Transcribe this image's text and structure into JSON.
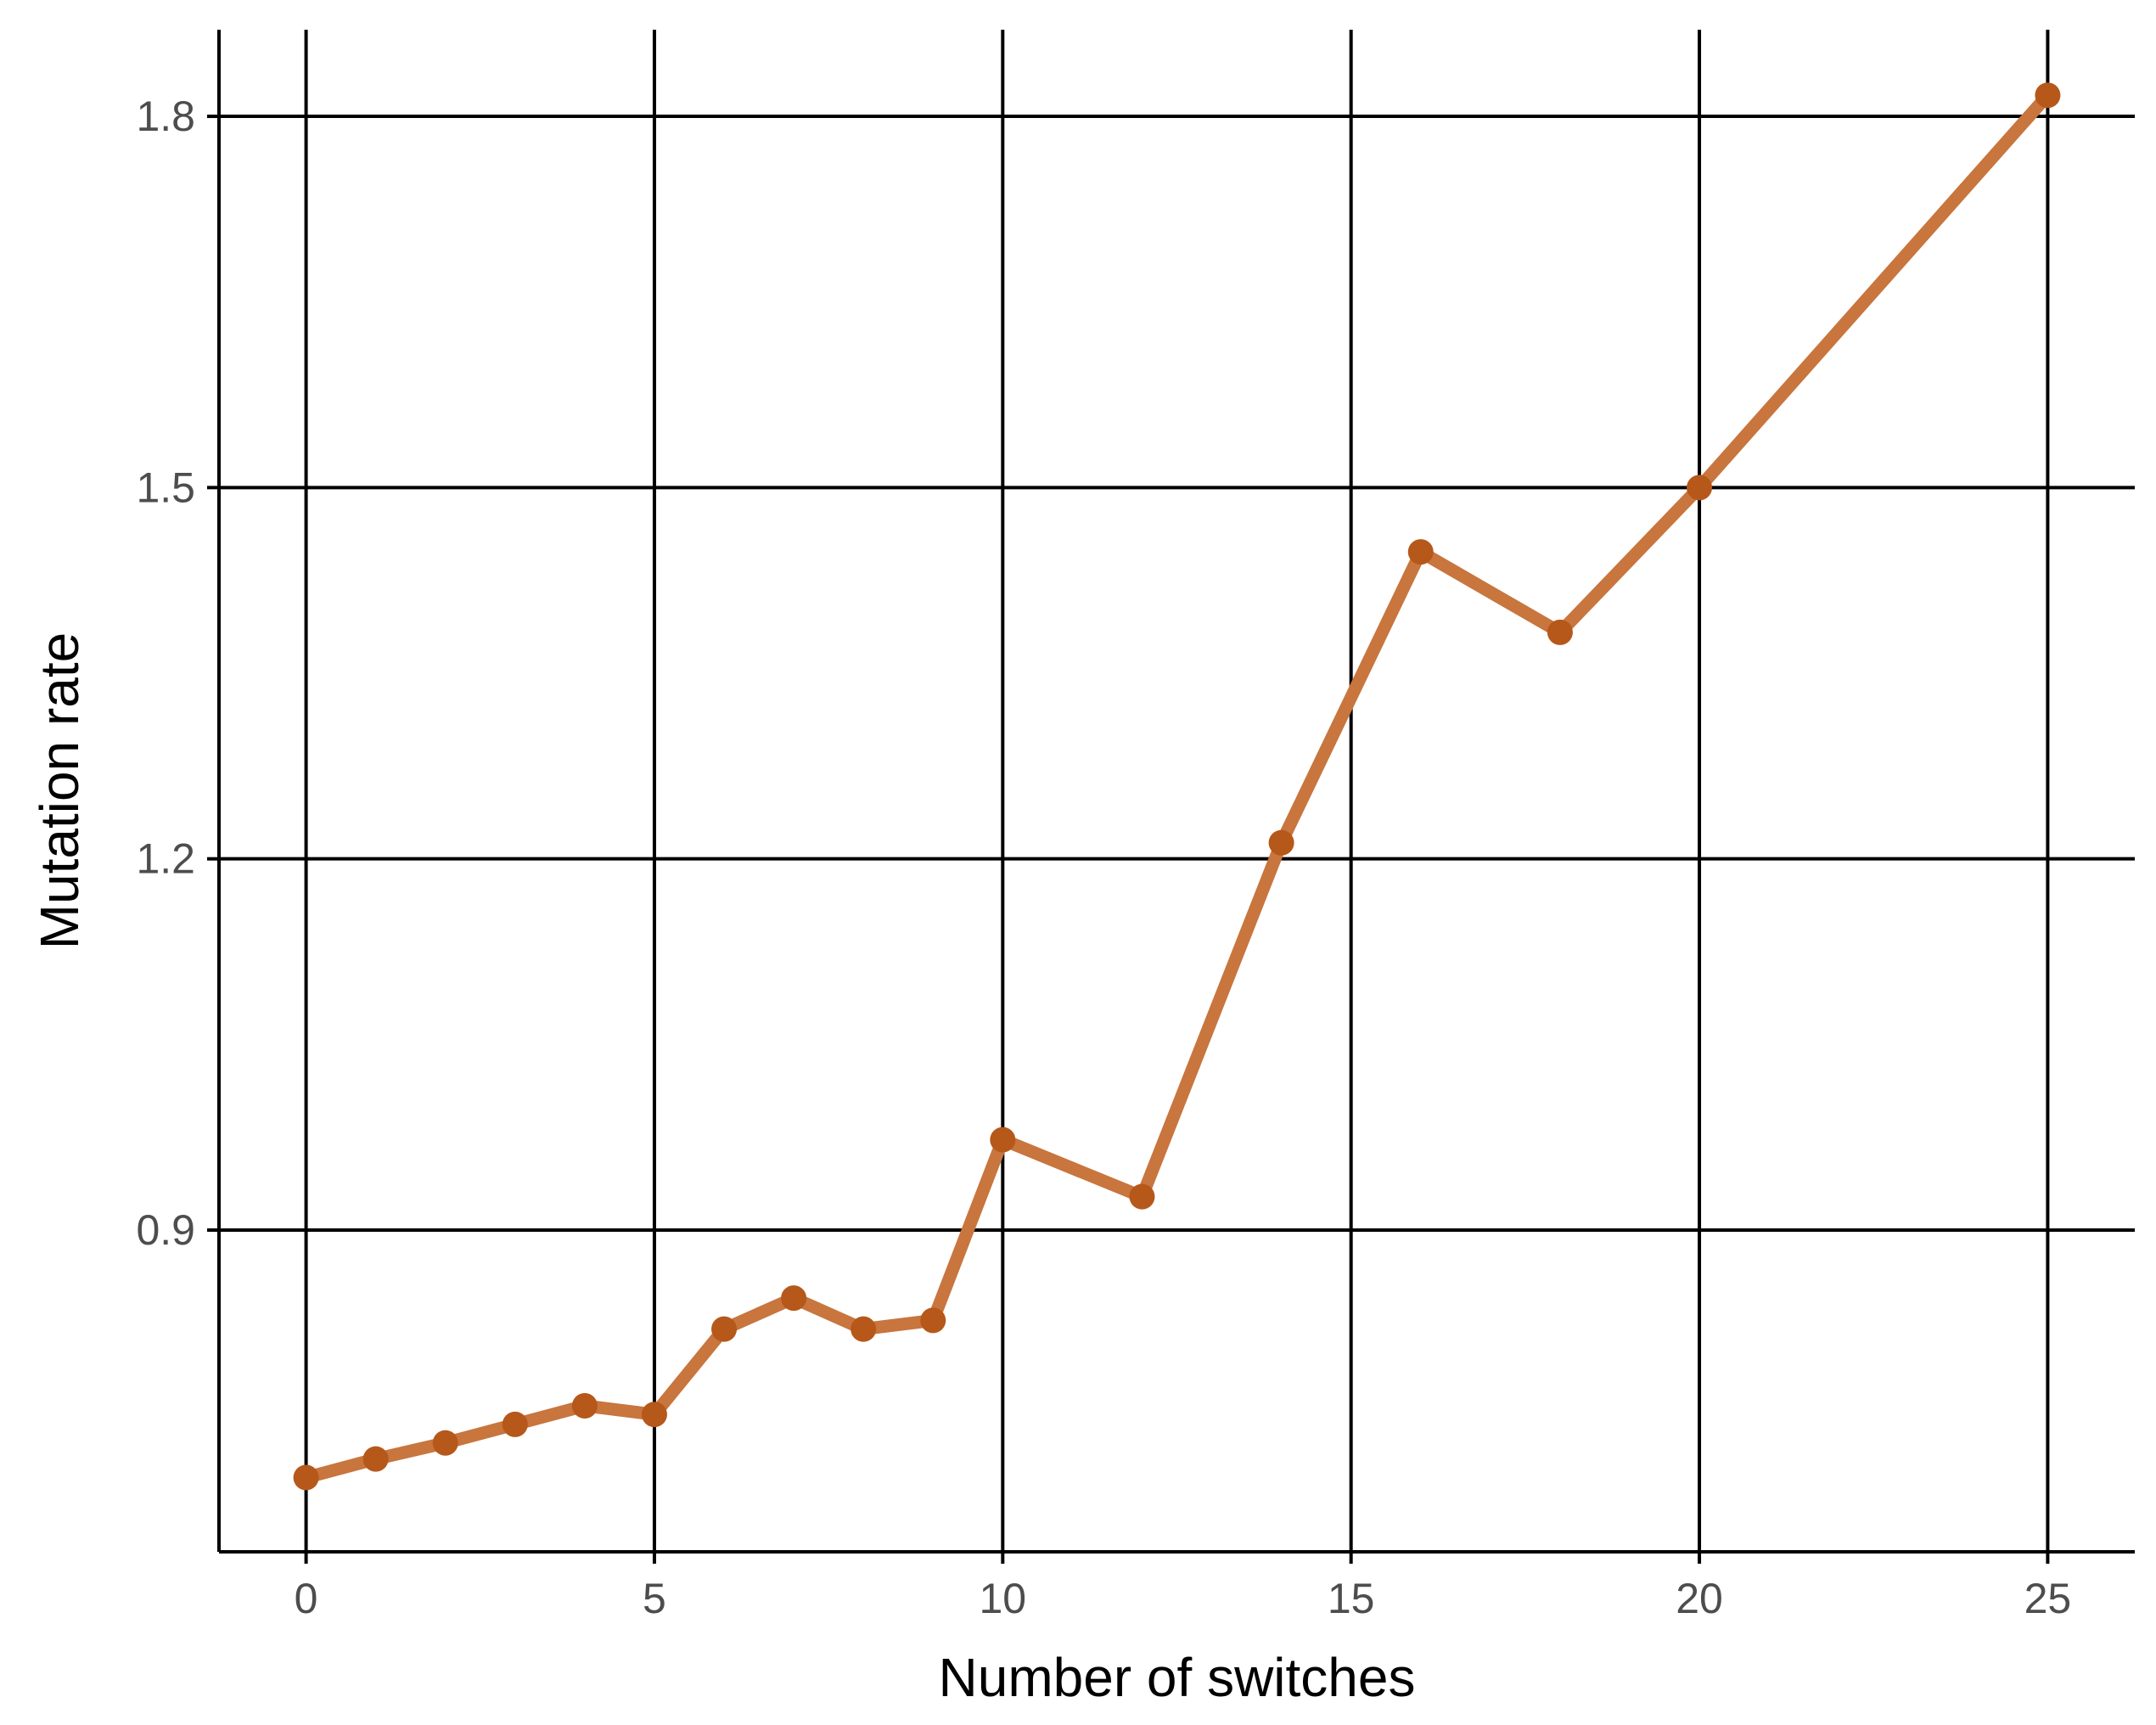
{
  "chart_data": {
    "type": "line",
    "title": "",
    "xlabel": "Number of switches",
    "ylabel": "Mutation rate",
    "xlim": [
      -1.25,
      26.25
    ],
    "ylim": [
      0.64,
      1.87
    ],
    "xticks": [
      0,
      5,
      10,
      15,
      20,
      25
    ],
    "xtick_labels": [
      "0",
      "5",
      "10",
      "15",
      "20",
      "25"
    ],
    "yticks": [
      0.9,
      1.2,
      1.5,
      1.8
    ],
    "ytick_labels": [
      "0.9",
      "1.2",
      "1.5",
      "1.8"
    ],
    "grid": true,
    "legend": "none",
    "series": [
      {
        "color": "#c8753e",
        "point_color": "#b5581a",
        "x": [
          0,
          1,
          2,
          3,
          4,
          5,
          6,
          7,
          8,
          9,
          10,
          12,
          14,
          16,
          18,
          20,
          25
        ],
        "y": [
          0.7,
          0.715,
          0.728,
          0.743,
          0.758,
          0.751,
          0.82,
          0.845,
          0.82,
          0.827,
          0.973,
          0.927,
          1.213,
          1.448,
          1.383,
          1.5,
          1.817
        ]
      }
    ]
  }
}
